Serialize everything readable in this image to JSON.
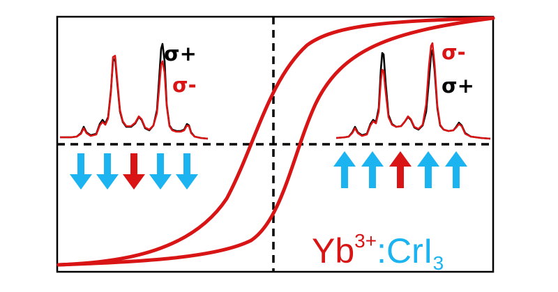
{
  "colors": {
    "frame": "#000000",
    "loop": "#d81414",
    "spectrum_red": "#d81414",
    "spectrum_black": "#000000",
    "arrow_blue": "#1bb3f0",
    "arrow_red": "#d81414",
    "formula_red": "#d81414",
    "formula_blue": "#1bb3f0"
  },
  "left_panel": {
    "legend_first": "σ+",
    "legend_second": "σ-",
    "spin_direction": "down",
    "arrows": [
      "blue",
      "blue",
      "red",
      "blue",
      "blue"
    ]
  },
  "right_panel": {
    "legend_first": "σ-",
    "legend_second": "σ+",
    "spin_direction": "up",
    "arrows": [
      "blue",
      "blue",
      "red",
      "blue",
      "blue"
    ]
  },
  "formula": {
    "element": "Yb",
    "charge": "3+",
    "separator": ":",
    "host": "CrI",
    "host_subscript": "3"
  }
}
